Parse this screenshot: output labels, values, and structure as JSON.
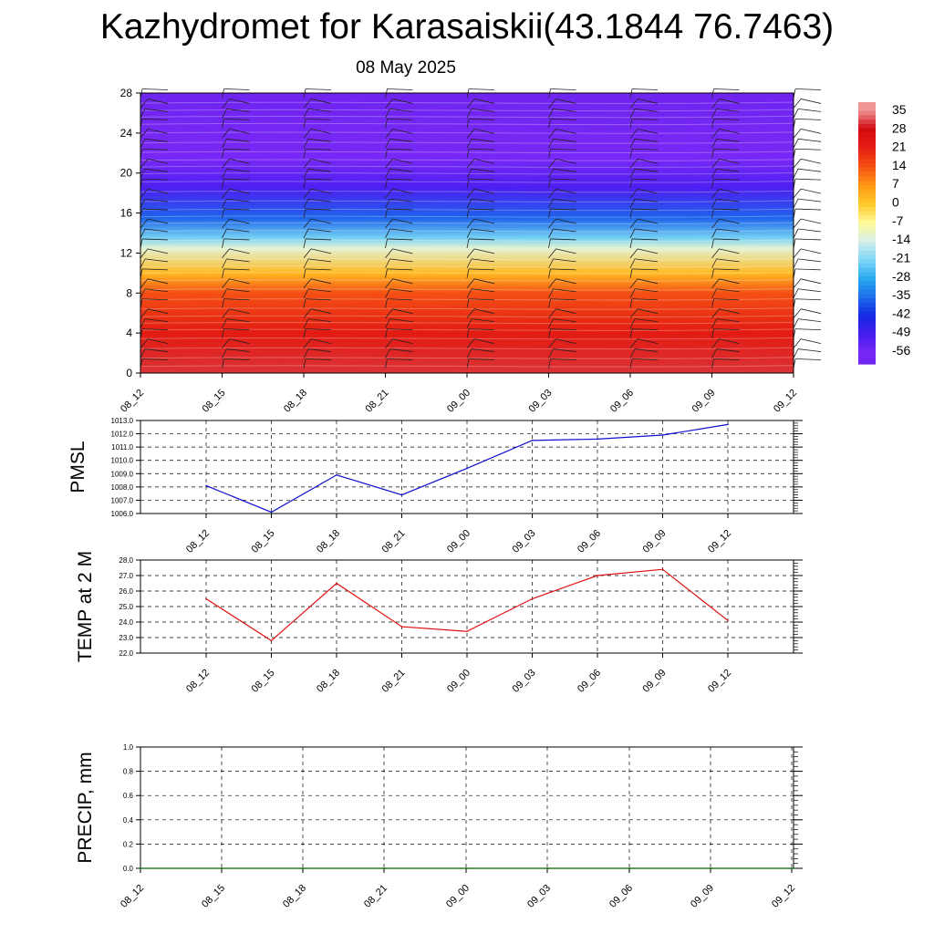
{
  "header": {
    "title": "Kazhydromet for Karasaiskii(43.1844 76.7463)",
    "date": "08 May 2025"
  },
  "colors": {
    "pmsl_line": "#1010d0",
    "temp_line": "#e01010",
    "precip_line": "#006400",
    "grid": "#000000"
  },
  "chart_data": [
    {
      "type": "heatmap",
      "name": "cross-section",
      "x_tick_labels": [
        "08_12",
        "08_15",
        "08_18",
        "08_21",
        "09_00",
        "09_03",
        "09_06",
        "09_09",
        "09_12"
      ],
      "y_ticks": [
        0,
        4,
        8,
        12,
        16,
        20,
        24,
        28
      ],
      "ylim": [
        0,
        28
      ],
      "colorbar_labels": [
        "35",
        "28",
        "21",
        "14",
        "7",
        "0",
        "-7",
        "-14",
        "-21",
        "-28",
        "-35",
        "-42",
        "-49",
        "-56"
      ],
      "color_levels": [
        {
          "y": 0,
          "value": 30
        },
        {
          "y": 4,
          "value": 22
        },
        {
          "y": 8,
          "value": 14
        },
        {
          "y": 10,
          "value": 2
        },
        {
          "y": 12.5,
          "value": -12
        },
        {
          "y": 13.5,
          "value": -22
        },
        {
          "y": 15.5,
          "value": -36
        },
        {
          "y": 18.5,
          "value": -50
        },
        {
          "y": 21.5,
          "value": -56
        },
        {
          "y": 28,
          "value": -60
        }
      ],
      "grid": false
    },
    {
      "type": "line",
      "name": "pmsl",
      "ylabel": "PMSL",
      "categories": [
        "08_12",
        "08_15",
        "08_18",
        "08_21",
        "09_00",
        "09_03",
        "09_06",
        "09_09",
        "09_12"
      ],
      "values": [
        1008.1,
        1006.1,
        1008.9,
        1007.4,
        1009.4,
        1011.5,
        1011.6,
        1011.9,
        1012.7
      ],
      "ylim": [
        1006.0,
        1013.0
      ],
      "y_ticks": [
        "1006.0",
        "1007.0",
        "1008.0",
        "1009.0",
        "1010.0",
        "1011.0",
        "1012.0",
        "1013.0"
      ],
      "grid": true
    },
    {
      "type": "line",
      "name": "temp",
      "ylabel": "TEMP at 2 M",
      "categories": [
        "08_12",
        "08_15",
        "08_18",
        "08_21",
        "09_00",
        "09_03",
        "09_06",
        "09_09",
        "09_12"
      ],
      "values": [
        25.5,
        22.8,
        26.5,
        23.7,
        23.4,
        25.5,
        27.0,
        27.4,
        24.1
      ],
      "ylim": [
        22.0,
        28.0
      ],
      "y_ticks": [
        "22.0",
        "23.0",
        "24.0",
        "25.0",
        "26.0",
        "27.0",
        "28.0"
      ],
      "grid": true
    },
    {
      "type": "line",
      "name": "precip",
      "ylabel": "PRECIP, mm",
      "categories": [
        "08_12",
        "08_15",
        "08_18",
        "08_21",
        "09_00",
        "09_03",
        "09_06",
        "09_09",
        "09_12"
      ],
      "values": [
        0,
        0,
        0,
        0,
        0,
        0,
        0,
        0,
        0
      ],
      "ylim": [
        0.0,
        1.0
      ],
      "y_ticks": [
        "0.0",
        "0.2",
        "0.4",
        "0.6",
        "0.8",
        "1.0"
      ],
      "grid": true
    }
  ]
}
